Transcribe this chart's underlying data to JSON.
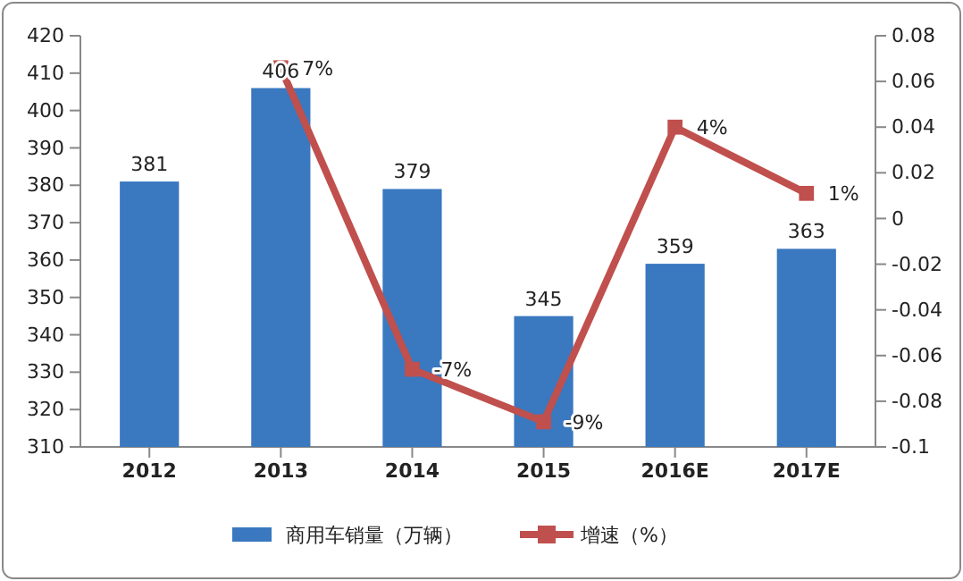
{
  "chart_data": {
    "type": "bar",
    "categories": [
      "2012",
      "2013",
      "2014",
      "2015",
      "2016E",
      "2017E"
    ],
    "series": [
      {
        "name": "商用车销量（万辆）",
        "color": "#3a78c0",
        "values": [
          381,
          406,
          379,
          345,
          359,
          363
        ],
        "value_labels": [
          "381",
          "406",
          "379",
          "345",
          "359",
          "363"
        ]
      },
      {
        "name": "增速（%）",
        "type": "line",
        "axis": "y2",
        "color": "#c0504d",
        "marker": "square",
        "values": [
          null,
          0.066,
          -0.066,
          -0.089,
          0.04,
          0.011
        ],
        "value_labels": [
          null,
          "7%",
          "-7%",
          "-9%",
          "4%",
          "1%"
        ]
      }
    ],
    "ylim": [
      310,
      420
    ],
    "yticks": [
      310,
      320,
      330,
      340,
      350,
      360,
      370,
      380,
      390,
      400,
      410,
      420
    ],
    "y2lim": [
      -0.1,
      0.08
    ],
    "y2ticks": [
      -0.1,
      -0.08,
      -0.06,
      -0.04,
      -0.02,
      0,
      0.02,
      0.04,
      0.06,
      0.08
    ],
    "legend": "bottom"
  }
}
